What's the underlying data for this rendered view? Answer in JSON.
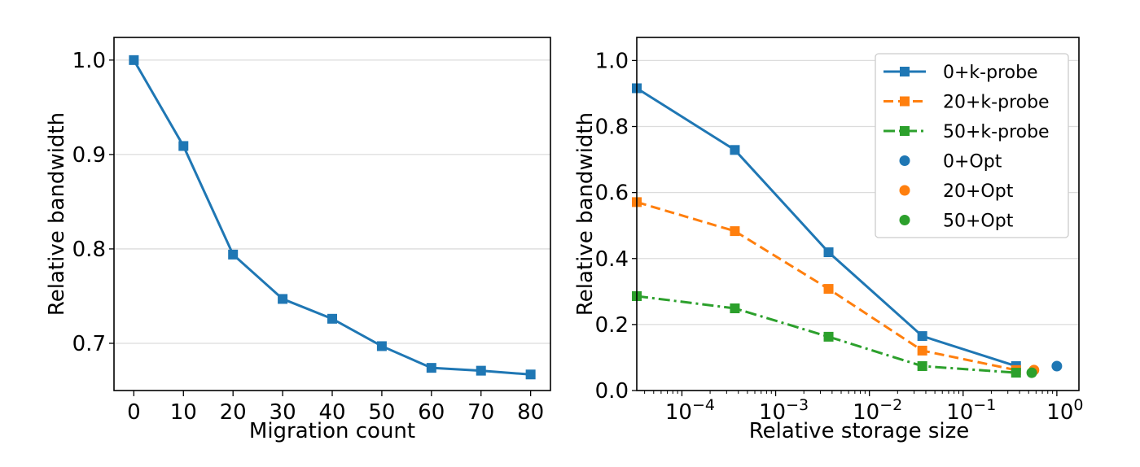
{
  "chart_data": [
    {
      "type": "line",
      "xlabel": "Migration count",
      "ylabel": "Relative bandwidth",
      "xlim": [
        -4,
        84
      ],
      "ylim": [
        0.65,
        1.024
      ],
      "xticks": [
        0,
        10,
        20,
        30,
        40,
        50,
        60,
        70,
        80
      ],
      "xtick_labels": [
        "0",
        "10",
        "20",
        "30",
        "40",
        "50",
        "60",
        "70",
        "80"
      ],
      "yticks": [
        0.7,
        0.8,
        0.9,
        1.0
      ],
      "ytick_labels": [
        "0.7",
        "0.8",
        "0.9",
        "1.0"
      ],
      "grid": "horizontal",
      "series": [
        {
          "x": [
            0,
            10,
            20,
            30,
            40,
            50,
            60,
            70,
            80
          ],
          "y": [
            1.0,
            0.909,
            0.794,
            0.747,
            0.726,
            0.697,
            0.674,
            0.671,
            0.667
          ],
          "color": "#1f77b4",
          "style": "solid",
          "marker": "square"
        }
      ]
    },
    {
      "type": "line",
      "xlabel": "Relative storage size",
      "ylabel": "Relative bandwidth",
      "xscale": "log",
      "xlim": [
        3.3e-05,
        1.72
      ],
      "ylim": [
        0,
        1.07
      ],
      "xticks": [
        0.0001,
        0.001,
        0.01,
        0.1,
        1
      ],
      "xtick_labels": [
        [
          "10",
          "−4"
        ],
        [
          "10",
          "−3"
        ],
        [
          "10",
          "−2"
        ],
        [
          "10",
          "−1"
        ],
        [
          "10",
          "0"
        ]
      ],
      "yticks": [
        0,
        0.2,
        0.4,
        0.6,
        0.8,
        1.0
      ],
      "ytick_labels": [
        "0.0",
        "0.2",
        "0.4",
        "0.6",
        "0.8",
        "1.0"
      ],
      "grid": "horizontal",
      "legend": "top-right",
      "series": [
        {
          "name": "0+k-probe",
          "x": [
            3.3e-05,
            0.000367,
            0.00367,
            0.0367,
            0.367
          ],
          "y": [
            0.916,
            0.729,
            0.419,
            0.165,
            0.074
          ],
          "color": "#1f77b4",
          "style": "solid",
          "marker": "square"
        },
        {
          "name": "20+k-probe",
          "x": [
            3.3e-05,
            0.000367,
            0.00367,
            0.0367,
            0.367
          ],
          "y": [
            0.571,
            0.483,
            0.308,
            0.121,
            0.062
          ],
          "color": "#ff7f0e",
          "style": "dashed",
          "marker": "square"
        },
        {
          "name": "50+k-probe",
          "x": [
            3.3e-05,
            0.000367,
            0.00367,
            0.0367,
            0.367
          ],
          "y": [
            0.286,
            0.249,
            0.163,
            0.074,
            0.054
          ],
          "color": "#2ca02c",
          "style": "dashdot",
          "marker": "square"
        },
        {
          "name": "0+Opt",
          "x": [
            1.0
          ],
          "y": [
            0.074
          ],
          "color": "#1f77b4",
          "style": "none",
          "marker": "circle"
        },
        {
          "name": "20+Opt",
          "x": [
            0.57
          ],
          "y": [
            0.062
          ],
          "color": "#ff7f0e",
          "style": "none",
          "marker": "circle"
        },
        {
          "name": "50+Opt",
          "x": [
            0.54
          ],
          "y": [
            0.054
          ],
          "color": "#2ca02c",
          "style": "none",
          "marker": "circle"
        }
      ]
    }
  ]
}
